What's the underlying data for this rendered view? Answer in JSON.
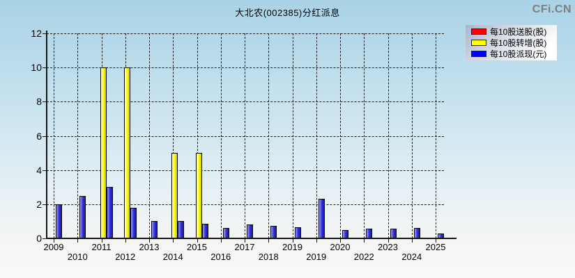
{
  "title": "大北农(002385)分红派息",
  "watermark": "CFi.CN",
  "legend": [
    {
      "label": "每10股送股(股)",
      "color": "#ff0000"
    },
    {
      "label": "每10股转增(股)",
      "color": "#ffff00"
    },
    {
      "label": "每10股派现(元)",
      "color": "#0000ff"
    }
  ],
  "chart_data": {
    "type": "bar",
    "title": "大北农(002385)分红派息",
    "xlabel": "",
    "ylabel": "",
    "ylim": [
      0,
      12
    ],
    "yticks": [
      0,
      2,
      4,
      6,
      8,
      10,
      12
    ],
    "grid": true,
    "legend_position": "top-right",
    "categories": [
      "2009",
      "2010",
      "2011",
      "2012",
      "2013",
      "2014",
      "2015",
      "2016",
      "2017",
      "2018",
      "2019",
      "2019",
      "2020",
      "2022",
      "2023",
      "2024",
      "2025"
    ],
    "series": [
      {
        "name": "每10股送股(股)",
        "color": "#ff0000",
        "values": [
          0,
          0,
          0,
          0,
          0,
          0,
          0,
          0,
          0,
          0,
          0,
          0,
          0,
          0,
          0,
          0,
          0
        ]
      },
      {
        "name": "每10股转增(股)",
        "color": "#ffff00",
        "values": [
          0,
          0,
          10,
          10,
          0,
          5,
          5,
          0,
          0,
          0,
          0,
          0,
          0,
          0,
          0,
          0,
          0
        ]
      },
      {
        "name": "每10股派现(元)",
        "color": "#0000ff",
        "values": [
          2,
          2.5,
          3,
          1.8,
          1,
          1,
          0.85,
          0.6,
          0.8,
          0.75,
          0.65,
          2.3,
          0.5,
          0.55,
          0.55,
          0.6,
          0.3
        ]
      }
    ]
  }
}
